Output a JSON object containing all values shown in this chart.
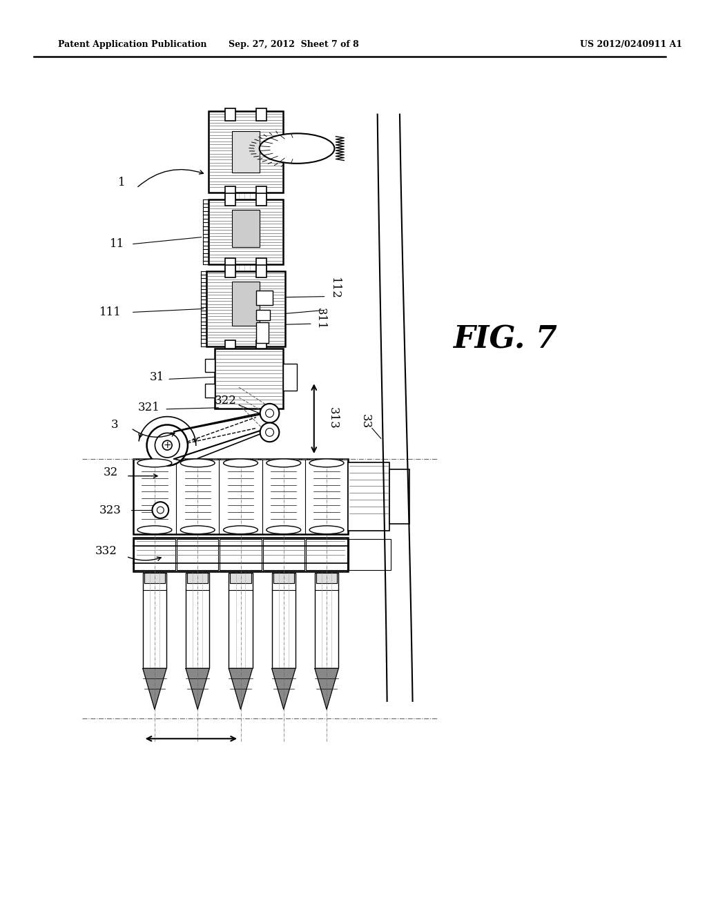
{
  "bg_color": "#ffffff",
  "header_left": "Patent Application Publication",
  "header_center": "Sep. 27, 2012  Sheet 7 of 8",
  "header_right": "US 2012/0240911 A1",
  "fig_label": "FIG. 7"
}
